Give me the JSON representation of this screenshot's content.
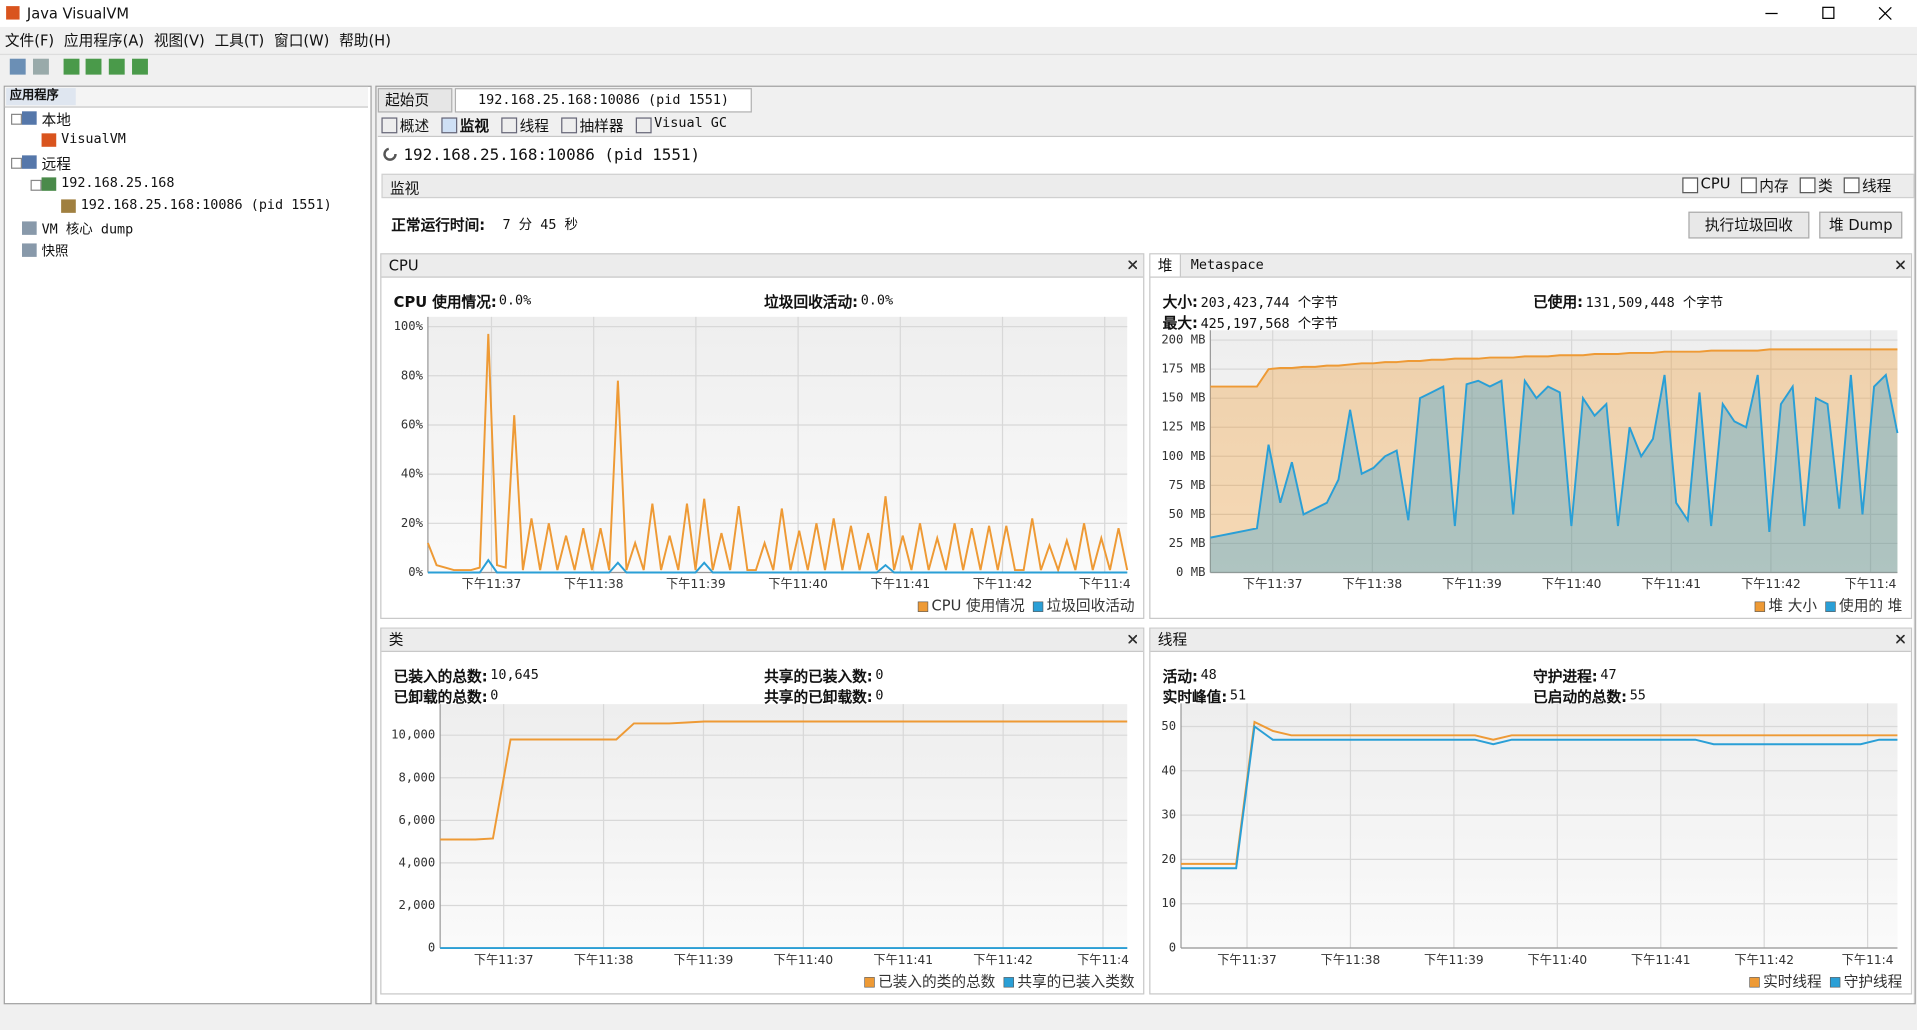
{
  "window": {
    "title": "Java VisualVM"
  },
  "menu": [
    "文件(F)",
    "应用程序(A)",
    "视图(V)",
    "工具(T)",
    "窗口(W)",
    "帮助(H)"
  ],
  "sidebar": {
    "tab": "应用程序",
    "tree": [
      "本地",
      "VisualVM",
      "远程",
      "192.168.25.168",
      "192.168.25.168:10086  (pid 1551)",
      "VM 核心 dump",
      "快照"
    ]
  },
  "tabs": [
    "起始页",
    "192.168.25.168:10086  (pid 1551)"
  ],
  "subtabs": [
    "概述",
    "监视",
    "线程",
    "抽样器",
    "Visual GC"
  ],
  "header": "192.168.25.168:10086  (pid 1551)",
  "monitor": {
    "title": "监视",
    "checkboxes": [
      "CPU",
      "内存",
      "类",
      "线程"
    ],
    "uptime_label": "正常运行时间:",
    "uptime": "7 分 45 秒",
    "buttons": [
      "执行垃圾回收",
      "堆 Dump"
    ]
  },
  "panels": [
    {
      "tabs": [
        "CPU"
      ],
      "stats": [
        {
          "label": "CPU 使用情况:",
          "value": "0.0%"
        },
        {
          "label": "垃圾回收活动:",
          "value": "0.0%"
        }
      ]
    },
    {
      "tabs": [
        "堆",
        "Metaspace"
      ],
      "stats": [
        {
          "label": "大小:",
          "value": "203,423,744 个字节"
        },
        {
          "label": "已使用:",
          "value": "131,509,448 个字节"
        },
        {
          "label": "最大:",
          "value": "425,197,568 个字节"
        }
      ]
    },
    {
      "tabs": [
        "类"
      ],
      "stats": [
        {
          "label": "已装入的总数:",
          "value": "10,645"
        },
        {
          "label": "共享的已装入数:",
          "value": "0"
        },
        {
          "label": "已卸载的总数:",
          "value": "0"
        },
        {
          "label": "共享的已卸载数:",
          "value": "0"
        }
      ]
    },
    {
      "tabs": [
        "线程"
      ],
      "stats": [
        {
          "label": "活动:",
          "value": "48"
        },
        {
          "label": "守护进程:",
          "value": "47"
        },
        {
          "label": "实时峰值:",
          "value": "51"
        },
        {
          "label": "已启动的总数:",
          "value": "55"
        }
      ]
    }
  ],
  "chart_data": [
    {
      "type": "line",
      "grid": true,
      "x_labels": [
        "下午11:37",
        "下午11:38",
        "下午11:39",
        "下午11:40",
        "下午11:41",
        "下午11:42",
        "下午11:4"
      ],
      "ylim": [
        0,
        100
      ],
      "yticks": [
        {
          "value": 0,
          "label": "0%"
        },
        {
          "value": 20,
          "label": "20%"
        },
        {
          "value": 40,
          "label": "40%"
        },
        {
          "value": 60,
          "label": "60%"
        },
        {
          "value": 80,
          "label": "80%"
        },
        {
          "value": 100,
          "label": "100%"
        }
      ],
      "series": [
        {
          "name": "CPU 使用情况",
          "color": "#ee9a35",
          "values": [
            12,
            3,
            2,
            1,
            1,
            1,
            2,
            97,
            3,
            2,
            64,
            1,
            22,
            1,
            20,
            1,
            15,
            1,
            18,
            1,
            18,
            1,
            78,
            1,
            12,
            1,
            28,
            1,
            15,
            1,
            28,
            1,
            30,
            1,
            16,
            1,
            27,
            1,
            1,
            12,
            1,
            26,
            1,
            17,
            1,
            20,
            1,
            22,
            1,
            19,
            1,
            16,
            1,
            31,
            1,
            15,
            1,
            20,
            1,
            14,
            1,
            20,
            1,
            18,
            1,
            19,
            1,
            19,
            1,
            1,
            22,
            1,
            11,
            1,
            13,
            1,
            20,
            1,
            14,
            1,
            18,
            1
          ]
        },
        {
          "name": "垃圾回收活动",
          "color": "#2a9fd6",
          "values": [
            0,
            0,
            0,
            0,
            0,
            0,
            0,
            5,
            0,
            0,
            0,
            0,
            0,
            0,
            0,
            0,
            0,
            0,
            0,
            0,
            0,
            0,
            4,
            0,
            0,
            0,
            0,
            0,
            0,
            0,
            0,
            0,
            4,
            0,
            0,
            0,
            0,
            0,
            0,
            0,
            0,
            0,
            0,
            0,
            0,
            0,
            0,
            0,
            0,
            0,
            0,
            0,
            0,
            3,
            0,
            0,
            0,
            0,
            0,
            0,
            0,
            0,
            0,
            0,
            0,
            0,
            0,
            0,
            0,
            0,
            0,
            0,
            0,
            0,
            0,
            0,
            0,
            0,
            0,
            0,
            0,
            0
          ]
        }
      ]
    },
    {
      "type": "area",
      "grid": true,
      "x_labels": [
        "下午11:37",
        "下午11:38",
        "下午11:39",
        "下午11:40",
        "下午11:41",
        "下午11:42",
        "下午11:4"
      ],
      "ylim": [
        0,
        200
      ],
      "yticks": [
        {
          "value": 0,
          "label": "0 MB"
        },
        {
          "value": 25,
          "label": "25 MB"
        },
        {
          "value": 50,
          "label": "50 MB"
        },
        {
          "value": 75,
          "label": "75 MB"
        },
        {
          "value": 100,
          "label": "100 MB"
        },
        {
          "value": 125,
          "label": "125 MB"
        },
        {
          "value": 150,
          "label": "150 MB"
        },
        {
          "value": 175,
          "label": "175 MB"
        },
        {
          "value": 200,
          "label": "200 MB"
        }
      ],
      "series": [
        {
          "name": "堆 大小",
          "color": "#ee9a35",
          "values": [
            160,
            160,
            160,
            160,
            160,
            175,
            176,
            176,
            177,
            177,
            178,
            178,
            179,
            180,
            180,
            181,
            181,
            182,
            182,
            183,
            183,
            184,
            184,
            184,
            185,
            185,
            185,
            186,
            186,
            186,
            187,
            187,
            187,
            188,
            188,
            188,
            189,
            189,
            189,
            190,
            190,
            190,
            190,
            191,
            191,
            191,
            191,
            191,
            192,
            192,
            192,
            192,
            192,
            192,
            192,
            192,
            192,
            192,
            192,
            192
          ]
        },
        {
          "name": "使用的 堆",
          "color": "#2a9fd6",
          "values": [
            30,
            32,
            34,
            36,
            38,
            110,
            60,
            95,
            50,
            55,
            60,
            80,
            140,
            85,
            90,
            100,
            105,
            45,
            150,
            155,
            160,
            40,
            162,
            165,
            160,
            165,
            50,
            165,
            150,
            160,
            155,
            40,
            150,
            135,
            145,
            40,
            125,
            100,
            115,
            170,
            60,
            45,
            155,
            40,
            145,
            130,
            125,
            170,
            35,
            145,
            160,
            40,
            150,
            145,
            55,
            170,
            50,
            160,
            170,
            120
          ]
        }
      ]
    },
    {
      "type": "line",
      "grid": true,
      "x_labels": [
        "下午11:37",
        "下午11:38",
        "下午11:39",
        "下午11:40",
        "下午11:41",
        "下午11:42",
        "下午11:4"
      ],
      "ylim": [
        0,
        11000
      ],
      "yticks": [
        0,
        {
          "value": 2000,
          "label": "2,000"
        },
        {
          "value": 4000,
          "label": "4,000"
        },
        {
          "value": 6000,
          "label": "6,000"
        },
        {
          "value": 8000,
          "label": "8,000"
        },
        {
          "value": 10000,
          "label": "10,000"
        }
      ],
      "series": [
        {
          "name": "已装入的类的总数",
          "color": "#ee9a35",
          "values": [
            5100,
            5100,
            5100,
            5150,
            9800,
            9800,
            9800,
            9800,
            9800,
            9800,
            9800,
            10550,
            10550,
            10550,
            10600,
            10645,
            10645,
            10645,
            10645,
            10645,
            10645,
            10645,
            10645,
            10645,
            10645,
            10645,
            10645,
            10645,
            10645,
            10645,
            10645,
            10645,
            10645,
            10645,
            10645,
            10645,
            10645,
            10645,
            10645,
            10645
          ]
        },
        {
          "name": "共享的已装入类数",
          "color": "#2a9fd6",
          "values": [
            0,
            0,
            0,
            0,
            0,
            0,
            0,
            0,
            0,
            0,
            0,
            0,
            0,
            0,
            0,
            0,
            0,
            0,
            0,
            0,
            0,
            0,
            0,
            0,
            0,
            0,
            0,
            0,
            0,
            0,
            0,
            0,
            0,
            0,
            0,
            0,
            0,
            0,
            0,
            0
          ]
        }
      ]
    },
    {
      "type": "line",
      "grid": true,
      "x_labels": [
        "下午11:37",
        "下午11:38",
        "下午11:39",
        "下午11:40",
        "下午11:41",
        "下午11:42",
        "下午11:4"
      ],
      "ylim": [
        0,
        53
      ],
      "yticks": [
        0,
        10,
        20,
        30,
        40,
        50
      ],
      "series": [
        {
          "name": "实时线程",
          "color": "#ee9a35",
          "values": [
            19,
            19,
            19,
            19,
            51,
            49,
            48,
            48,
            48,
            48,
            48,
            48,
            48,
            48,
            48,
            48,
            48,
            47,
            48,
            48,
            48,
            48,
            48,
            48,
            48,
            48,
            48,
            48,
            48,
            48,
            48,
            48,
            48,
            48,
            48,
            48,
            48,
            48,
            48,
            48
          ]
        },
        {
          "name": "守护线程",
          "color": "#2a9fd6",
          "values": [
            18,
            18,
            18,
            18,
            50,
            47,
            47,
            47,
            47,
            47,
            47,
            47,
            47,
            47,
            47,
            47,
            47,
            46,
            47,
            47,
            47,
            47,
            47,
            47,
            47,
            47,
            47,
            47,
            47,
            46,
            46,
            46,
            46,
            46,
            46,
            46,
            46,
            46,
            47,
            47
          ]
        }
      ]
    }
  ]
}
